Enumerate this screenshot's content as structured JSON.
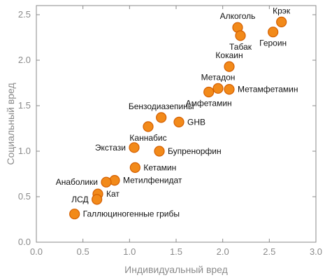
{
  "chart_data": {
    "type": "scatter",
    "title": "",
    "xlabel": "Индивидуальный вред",
    "ylabel": "Социальный вред",
    "xlim": [
      0.0,
      3.0
    ],
    "ylim": [
      0.0,
      2.6
    ],
    "xticks": [
      0.0,
      0.5,
      1.0,
      1.5,
      2.0,
      2.5,
      3.0
    ],
    "yticks": [
      0.0,
      0.5,
      1.0,
      1.5,
      2.0,
      2.5
    ],
    "xtick_labels": [
      "0.0",
      "0.5",
      "1.0",
      "1.5",
      "2.0",
      "2.5",
      "3.0"
    ],
    "ytick_labels": [
      "0.0",
      "0.5",
      "1.0",
      "1.5",
      "2.0",
      "2.5"
    ],
    "grid": false,
    "marker_color": "#f28a1a",
    "series": [
      {
        "points": [
          {
            "x": 2.63,
            "y": 2.42,
            "label": "Крэк",
            "label_pos": "above"
          },
          {
            "x": 2.16,
            "y": 2.36,
            "label": "Алкоголь",
            "label_pos": "above"
          },
          {
            "x": 2.19,
            "y": 2.27,
            "label": "Табак",
            "label_pos": "below"
          },
          {
            "x": 2.54,
            "y": 2.31,
            "label": "Героин",
            "label_pos": "below"
          },
          {
            "x": 2.07,
            "y": 1.93,
            "label": "Кокаин",
            "label_pos": "above"
          },
          {
            "x": 1.95,
            "y": 1.69,
            "label": "Метадон",
            "label_pos": "above"
          },
          {
            "x": 2.07,
            "y": 1.68,
            "label": "Метамфетамин",
            "label_pos": "right"
          },
          {
            "x": 1.85,
            "y": 1.65,
            "label": "Амфетамин",
            "label_pos": "below"
          },
          {
            "x": 1.34,
            "y": 1.37,
            "label": "Бензодиазепины",
            "label_pos": "above"
          },
          {
            "x": 1.53,
            "y": 1.32,
            "label": "GHB",
            "label_pos": "right"
          },
          {
            "x": 1.2,
            "y": 1.27,
            "label": "Каннабис",
            "label_pos": "below"
          },
          {
            "x": 1.05,
            "y": 1.04,
            "label": "Экстази",
            "label_pos": "left"
          },
          {
            "x": 1.32,
            "y": 1.0,
            "label": "Бупренорфин",
            "label_pos": "right"
          },
          {
            "x": 1.06,
            "y": 0.82,
            "label": "Кетамин",
            "label_pos": "right"
          },
          {
            "x": 0.84,
            "y": 0.68,
            "label": "Метилфенидат",
            "label_pos": "right"
          },
          {
            "x": 0.75,
            "y": 0.66,
            "label": "Анаболики",
            "label_pos": "left"
          },
          {
            "x": 0.66,
            "y": 0.53,
            "label": "Кат",
            "label_pos": "right"
          },
          {
            "x": 0.65,
            "y": 0.47,
            "label": "ЛСД",
            "label_pos": "left"
          },
          {
            "x": 0.41,
            "y": 0.31,
            "label": "Галлюциногенные грибы",
            "label_pos": "right"
          }
        ]
      }
    ]
  }
}
